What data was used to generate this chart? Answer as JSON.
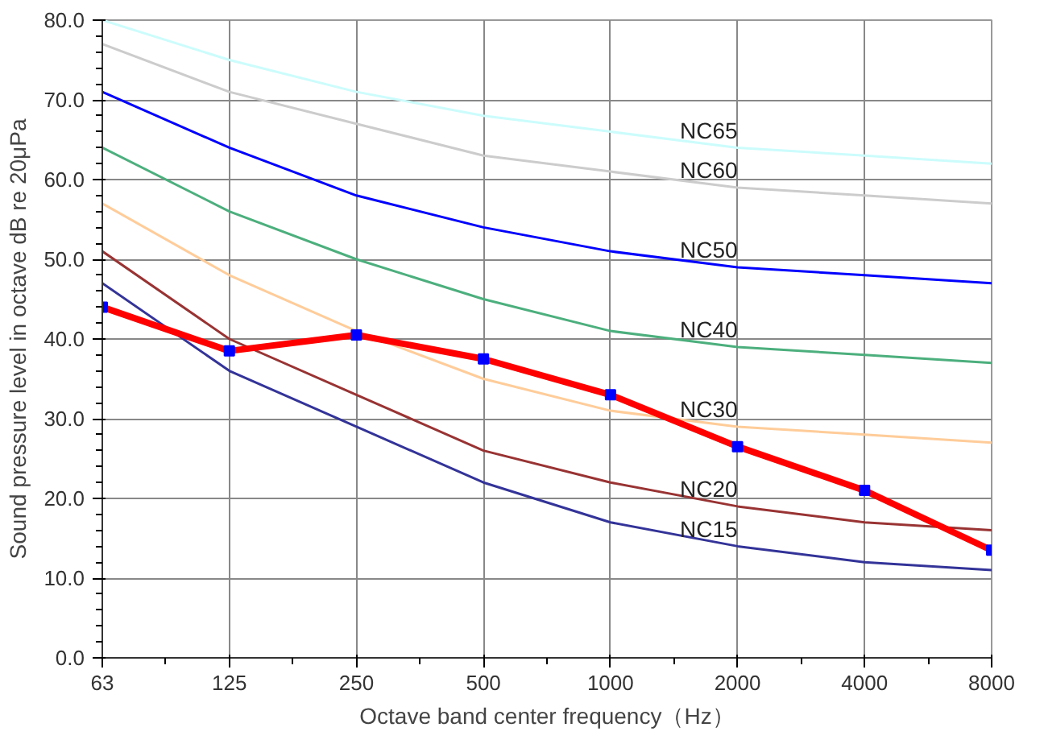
{
  "chart_data": {
    "type": "line",
    "xlabel": "Octave band center frequency（Hz）",
    "ylabel": "Sound pressure level in octave dB re 20μPa",
    "categories": [
      "63",
      "125",
      "250",
      "500",
      "1000",
      "2000",
      "4000",
      "8000"
    ],
    "ylim": [
      0,
      80
    ],
    "yticks": [
      {
        "value": 0,
        "label": "0.0"
      },
      {
        "value": 10,
        "label": "10.0"
      },
      {
        "value": 20,
        "label": "20.0"
      },
      {
        "value": 30,
        "label": "30.0"
      },
      {
        "value": 40,
        "label": "40.0"
      },
      {
        "value": 50,
        "label": "50.0"
      },
      {
        "value": 60,
        "label": "60.0"
      },
      {
        "value": 70,
        "label": "70.0"
      },
      {
        "value": 80,
        "label": "80.0"
      }
    ],
    "grid": true,
    "series": [
      {
        "name": "NC65",
        "color": "#ccfcfc",
        "values": [
          80,
          75,
          71,
          68,
          66,
          64,
          63,
          62
        ]
      },
      {
        "name": "NC60",
        "color": "#cccccc",
        "values": [
          77,
          71,
          67,
          63,
          61,
          59,
          58,
          57
        ]
      },
      {
        "name": "NC50",
        "color": "#0000ff",
        "values": [
          71,
          64,
          58,
          54,
          51,
          49,
          48,
          47
        ]
      },
      {
        "name": "NC40",
        "color": "#4caf7d",
        "values": [
          64,
          56,
          50,
          45,
          41,
          39,
          38,
          37
        ]
      },
      {
        "name": "NC30",
        "color": "#ffcc99",
        "values": [
          57,
          48,
          41,
          35,
          31,
          29,
          28,
          27
        ]
      },
      {
        "name": "NC20",
        "color": "#993333",
        "values": [
          51,
          40,
          33,
          26,
          22,
          19,
          17,
          16
        ]
      },
      {
        "name": "NC15",
        "color": "#333399",
        "values": [
          47,
          36,
          29,
          22,
          17,
          14,
          12,
          11
        ]
      },
      {
        "color": "#ff0000",
        "marker": "square",
        "values": [
          44,
          38.5,
          40.5,
          37.5,
          33,
          26.5,
          21,
          13.5
        ]
      }
    ]
  }
}
